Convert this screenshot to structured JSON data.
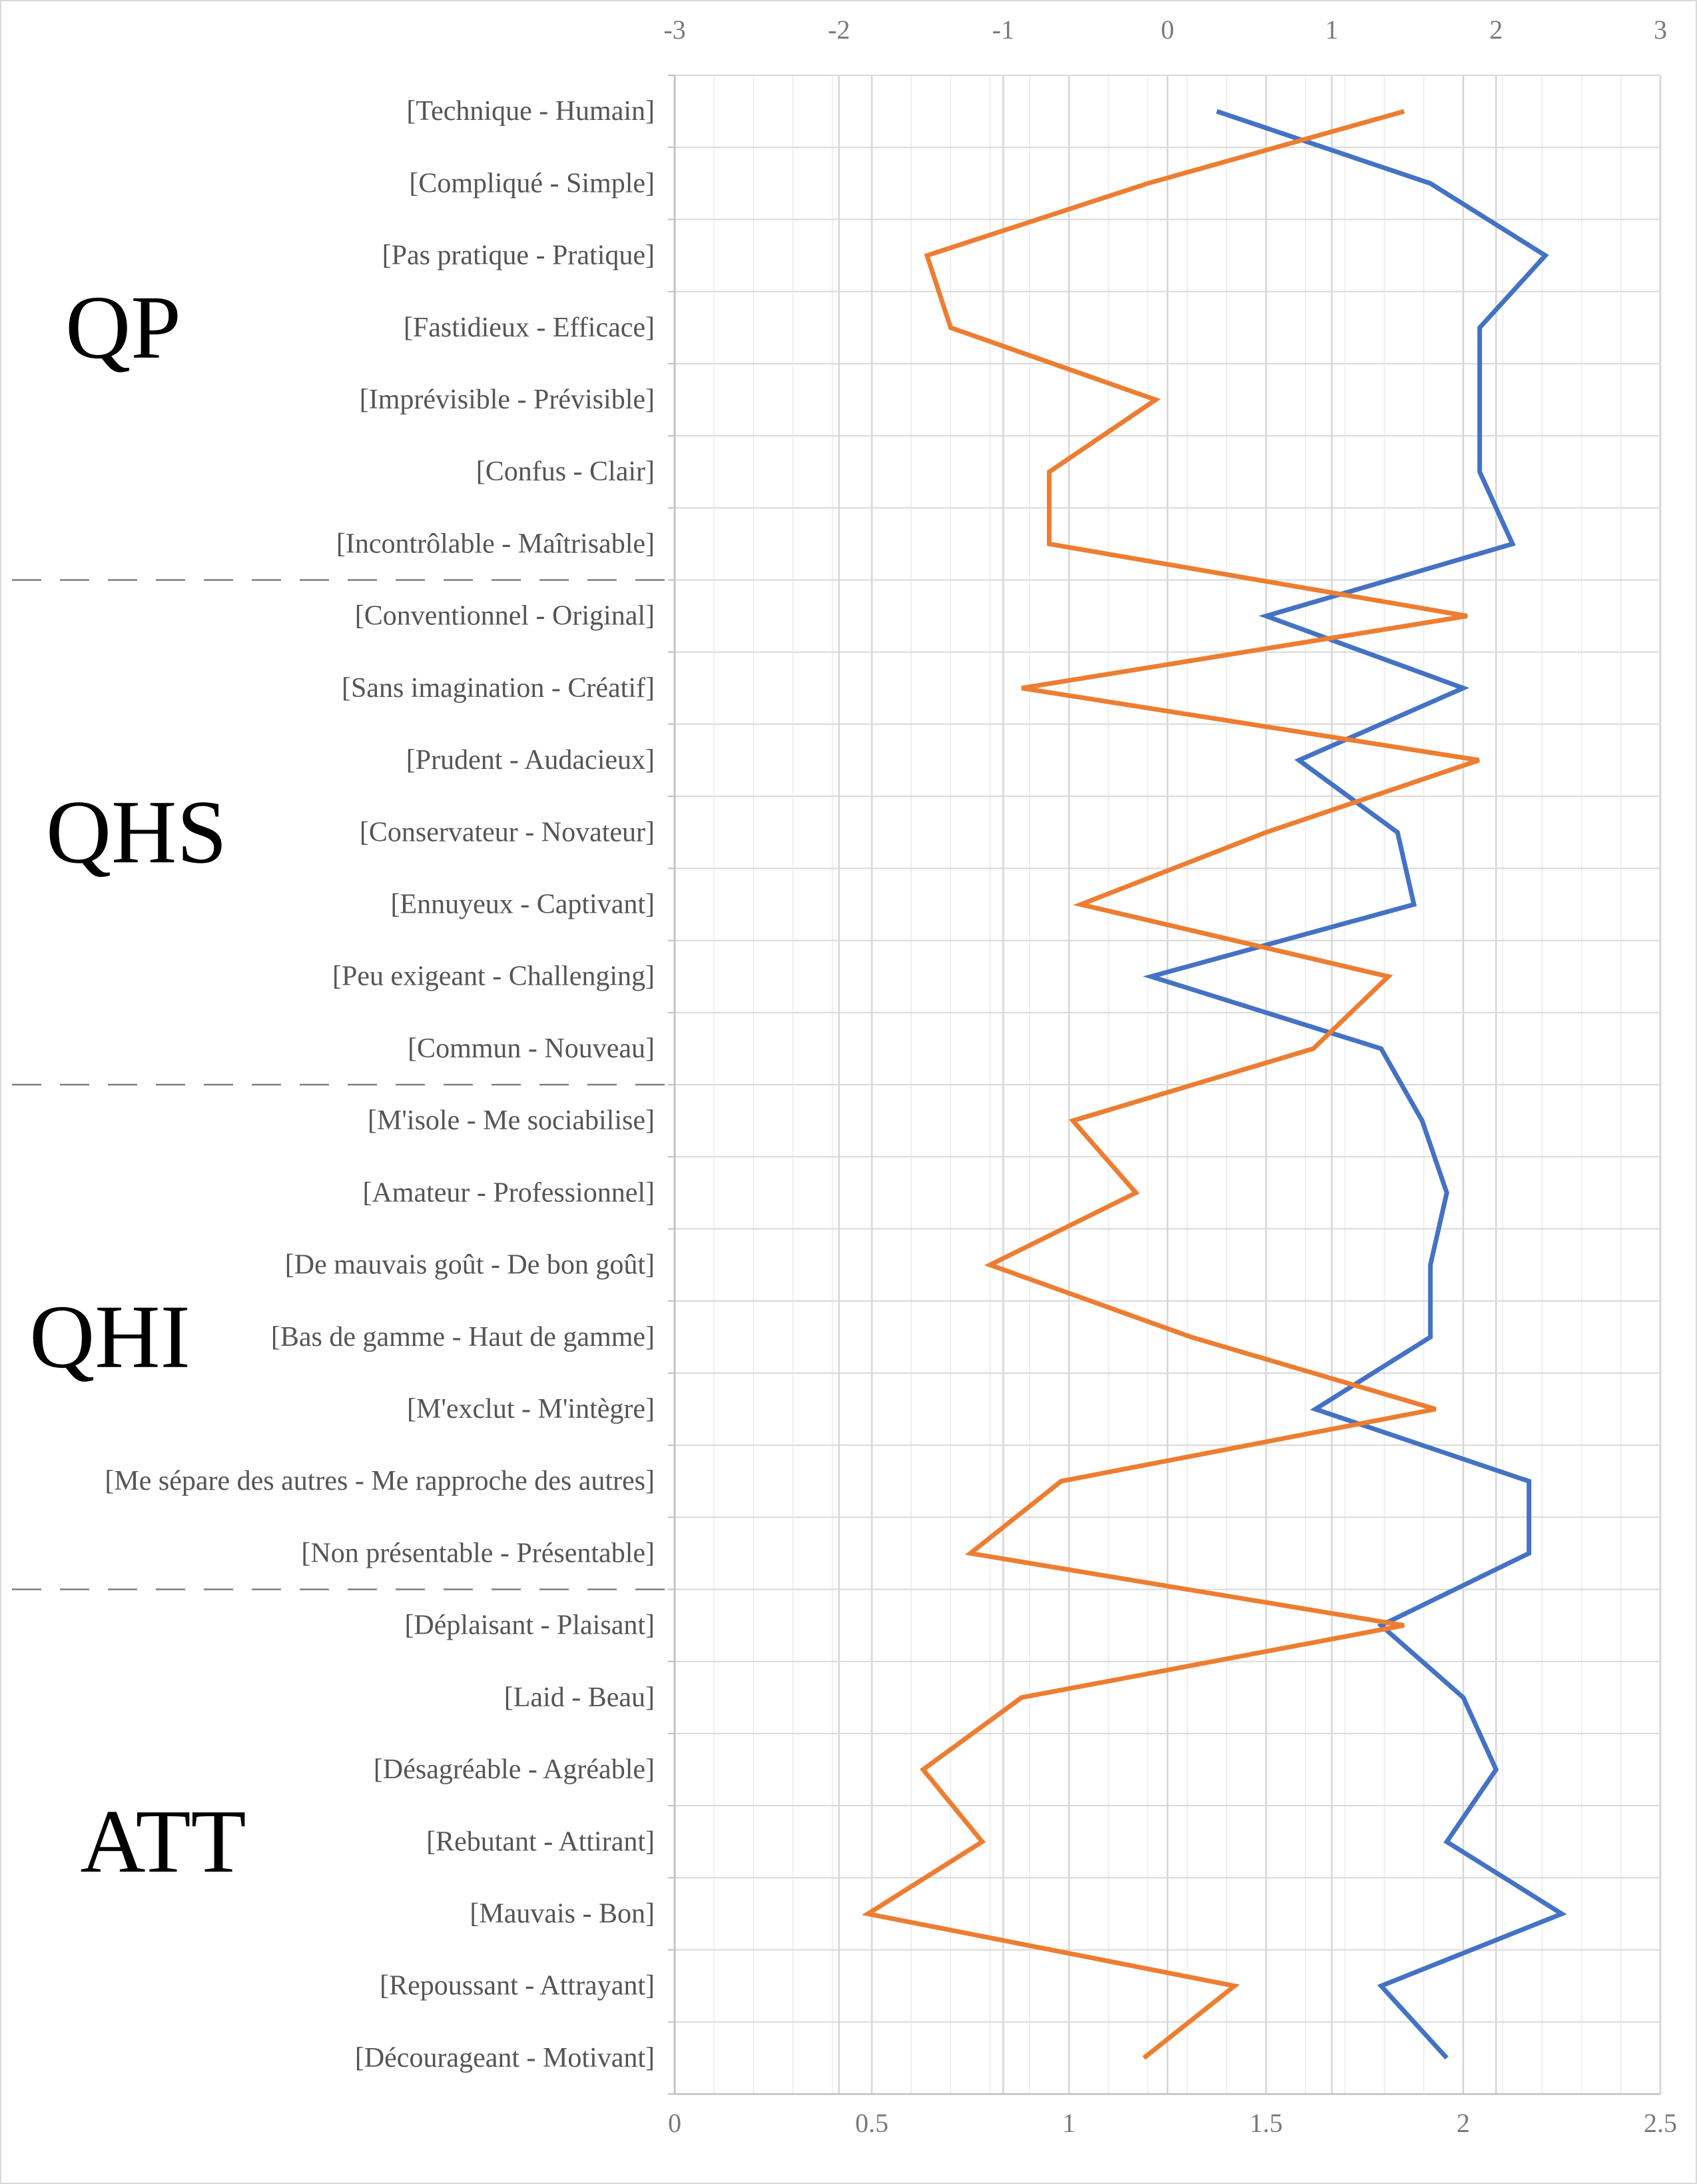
{
  "chart_data": {
    "type": "line",
    "orientation": "vertical-profile",
    "categories": [
      "[Technique - Humain]",
      "[Compliqué - Simple]",
      "[Pas pratique - Pratique]",
      "[Fastidieux - Efficace]",
      "[Imprévisible - Prévisible]",
      "[Confus - Clair]",
      "[Incontrôlable - Maîtrisable]",
      "[Conventionnel - Original]",
      "[Sans imagination - Créatif]",
      "[Prudent - Audacieux]",
      "[Conservateur - Novateur]",
      "[Ennuyeux - Captivant]",
      "[Peu exigeant - Challenging]",
      "[Commun - Nouveau]",
      "[M'isole - Me sociabilise]",
      "[Amateur - Professionnel]",
      "[De mauvais goût - De bon goût]",
      "[Bas de gamme - Haut de gamme]",
      "[M'exclut - M'intègre]",
      "[Me sépare des autres - Me rapproche des autres]",
      "[Non présentable - Présentable]",
      "[Déplaisant - Plaisant]",
      "[Laid - Beau]",
      "[Désagréable - Agréable]",
      "[Rebutant - Attirant]",
      "[Mauvais - Bon]",
      "[Repoussant - Attrayant]",
      "[Décourageant - Motivant]"
    ],
    "groups": [
      {
        "label": "QP",
        "start": 0,
        "end": 6
      },
      {
        "label": "QHS",
        "start": 7,
        "end": 13
      },
      {
        "label": "QHI",
        "start": 14,
        "end": 20
      },
      {
        "label": "ATT",
        "start": 21,
        "end": 27
      }
    ],
    "top_axis": {
      "min": -3,
      "max": 3,
      "ticks": [
        "-3",
        "-2",
        "-1",
        "0",
        "1",
        "2",
        "3"
      ]
    },
    "bottom_axis": {
      "min": 0,
      "max": 2.5,
      "ticks": [
        "0",
        "0.5",
        "1",
        "1.5",
        "2",
        "2.5"
      ]
    },
    "series": [
      {
        "color": "#4472c4",
        "axis": "top",
        "values": [
          0.3,
          1.6,
          2.3,
          1.9,
          1.9,
          1.9,
          2.1,
          0.6,
          1.8,
          0.8,
          1.4,
          1.5,
          -0.1,
          1.3,
          1.55,
          1.7,
          1.6,
          1.6,
          0.9,
          2.2,
          2.2,
          1.3,
          1.8,
          2.0,
          1.7,
          2.4,
          1.3,
          1.7
        ]
      },
      {
        "color": "#ed7d31",
        "axis": "bottom",
        "values": [
          1.85,
          1.2,
          0.64,
          0.7,
          1.22,
          0.95,
          0.95,
          2.01,
          0.88,
          2.04,
          1.5,
          1.03,
          1.81,
          1.62,
          1.01,
          1.17,
          0.8,
          1.31,
          1.93,
          0.98,
          0.75,
          1.85,
          0.88,
          0.63,
          0.78,
          0.49,
          1.42,
          1.19
        ]
      }
    ],
    "grid": true,
    "xlabel": "",
    "ylabel": ""
  }
}
